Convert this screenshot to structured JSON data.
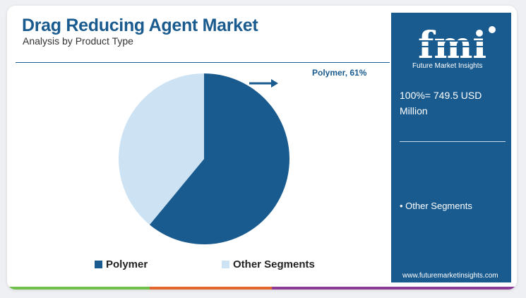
{
  "header": {
    "title": "Drag Reducing Agent Market",
    "subtitle": "Analysis by Product Type"
  },
  "chart_data": {
    "type": "pie",
    "title": "",
    "slices": [
      {
        "label": "Polymer",
        "value": 61,
        "color": "#1a5b8f"
      },
      {
        "label": "Other Segments",
        "value": 39,
        "color": "#cde3f4"
      }
    ],
    "annotations": [
      "Polymer, 61%"
    ],
    "legend": {
      "placement": "bottom",
      "entries": [
        "Polymer",
        "Other Segments"
      ]
    }
  },
  "callout": {
    "text": "Polymer, 61%",
    "icon": "arrow-right-icon"
  },
  "sidebar": {
    "logo_text": "fmi",
    "logo_caption": "Future Market Insights",
    "total_text": "100%= 749.5 USD Million",
    "items": [
      "• Other Segments"
    ],
    "website": "www.futuremarketinsights.com"
  },
  "colors": {
    "primary": "#1a5b8f",
    "light": "#cde3f4",
    "bar": [
      "#6fbf4a",
      "#e2672f",
      "#8b3a96"
    ]
  }
}
